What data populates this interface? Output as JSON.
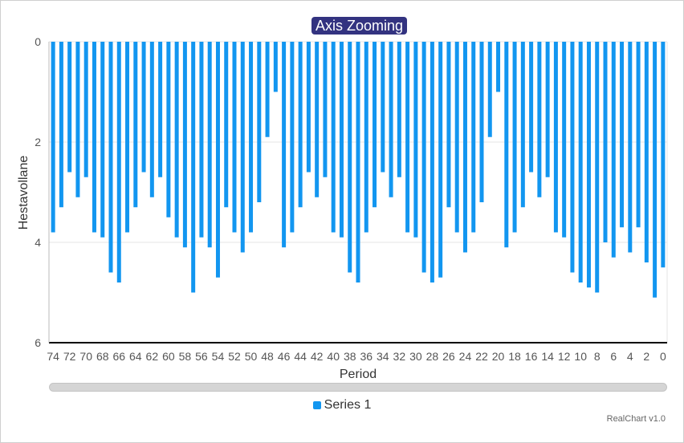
{
  "chart_data": {
    "type": "bar",
    "title": "Axis Zooming",
    "xlabel": "Period",
    "ylabel": "Hestavollane",
    "y_axis_reversed": true,
    "x_axis_reversed": true,
    "ylim": [
      0,
      6
    ],
    "y_ticks": [
      0,
      2,
      4,
      6
    ],
    "x_tick_labels": [
      74,
      72,
      70,
      68,
      66,
      64,
      62,
      60,
      58,
      56,
      54,
      52,
      50,
      48,
      46,
      44,
      42,
      40,
      38,
      36,
      34,
      32,
      30,
      28,
      26,
      24,
      22,
      20,
      18,
      16,
      14,
      12,
      10,
      8,
      6,
      4,
      2,
      0
    ],
    "grid": true,
    "legend_position": "bottom",
    "series": [
      {
        "name": "Series 1",
        "color": "#1296f0",
        "x": [
          74,
          73,
          72,
          71,
          70,
          69,
          68,
          67,
          66,
          65,
          64,
          63,
          62,
          61,
          60,
          59,
          58,
          57,
          56,
          55,
          54,
          53,
          52,
          51,
          50,
          49,
          48,
          47,
          46,
          45,
          44,
          43,
          42,
          41,
          40,
          39,
          38,
          37,
          36,
          35,
          34,
          33,
          32,
          31,
          30,
          29,
          28,
          27,
          26,
          25,
          24,
          23,
          22,
          21,
          20,
          19,
          18,
          17,
          16,
          15,
          14,
          13,
          12,
          11,
          10,
          9,
          8,
          7,
          6,
          5,
          4,
          3,
          2,
          1,
          0
        ],
        "values": [
          3.8,
          3.3,
          2.6,
          3.1,
          2.7,
          3.8,
          3.9,
          4.6,
          4.8,
          3.8,
          3.3,
          2.6,
          3.1,
          2.7,
          3.5,
          3.9,
          4.1,
          5.0,
          3.9,
          4.1,
          4.7,
          3.3,
          3.8,
          4.2,
          3.8,
          3.2,
          1.9,
          1.0,
          4.1,
          3.8,
          3.3,
          2.6,
          3.1,
          2.7,
          3.8,
          3.9,
          4.6,
          4.8,
          3.8,
          3.3,
          2.6,
          3.1,
          2.7,
          3.8,
          3.9,
          4.6,
          4.8,
          4.7,
          3.3,
          3.8,
          4.2,
          3.8,
          3.2,
          1.9,
          1.0,
          4.1,
          3.8,
          3.3,
          2.6,
          3.1,
          2.7,
          3.8,
          3.9,
          4.6,
          4.8,
          4.9,
          5.0,
          4.0,
          4.3,
          3.7,
          4.2,
          3.7,
          4.4,
          5.1,
          4.5
        ]
      }
    ]
  },
  "legend": {
    "label": "Series 1",
    "color": "#1296f0"
  },
  "credit": "RealChart v1.0"
}
